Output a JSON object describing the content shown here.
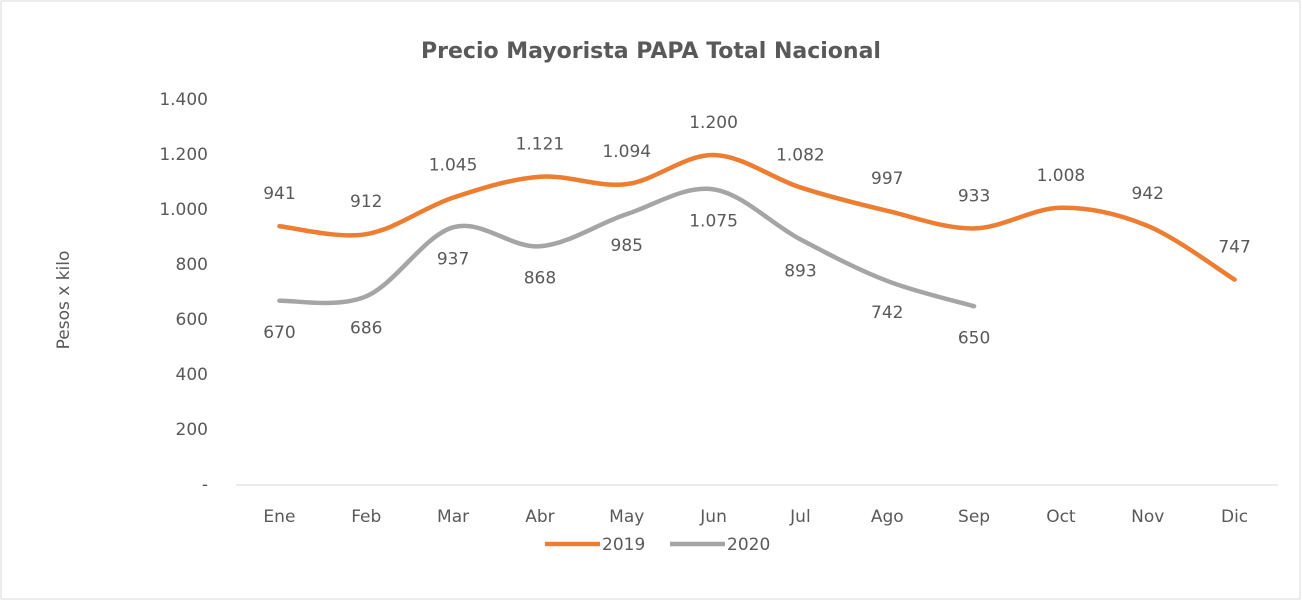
{
  "chart_data": {
    "type": "line",
    "title": "Precio Mayorista PAPA Total Nacional",
    "y_label": "Pesos x kilo",
    "categories": [
      "Ene",
      "Feb",
      "Mar",
      "Abr",
      "May",
      "Jun",
      "Jul",
      "Ago",
      "Sep",
      "Oct",
      "Nov",
      "Dic"
    ],
    "series": [
      {
        "name": "2019",
        "color": "#ED7D31",
        "values": [
          941,
          912,
          1045,
          1121,
          1094,
          1200,
          1082,
          997,
          933,
          1008,
          942,
          747
        ],
        "value_labels": [
          "941",
          "912",
          "1.045",
          "1.121",
          "1.094",
          "1.200",
          "1.082",
          "997",
          "933",
          "1.008",
          "942",
          "747"
        ]
      },
      {
        "name": "2020",
        "color": "#A5A5A5",
        "values": [
          670,
          686,
          937,
          868,
          985,
          1075,
          893,
          742,
          650,
          null,
          null,
          null
        ],
        "value_labels": [
          "670",
          "686",
          "937",
          "868",
          "985",
          "1.075",
          "893",
          "742",
          "650",
          null,
          null,
          null
        ]
      }
    ],
    "ylim": [
      0,
      1400
    ],
    "yticks": [
      {
        "value": 0,
        "label": "-"
      },
      200,
      400,
      600,
      800,
      {
        "value": 1000,
        "label": "1.000"
      },
      {
        "value": 1200,
        "label": "1.200"
      },
      {
        "value": 1400,
        "label": "1.400"
      }
    ],
    "legend": "bottom",
    "grid": false
  }
}
